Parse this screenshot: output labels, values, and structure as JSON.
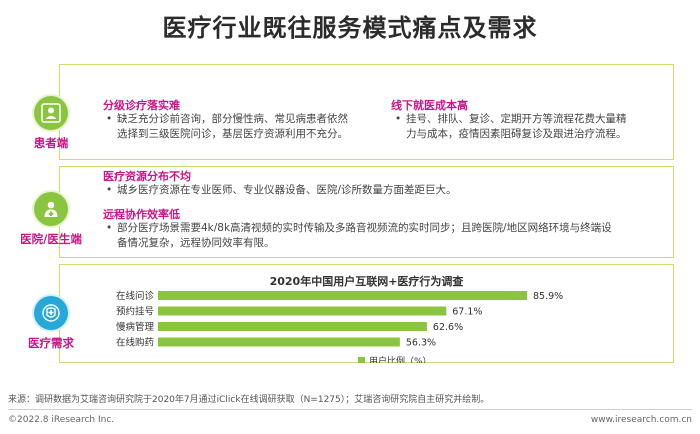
{
  "page": {
    "title": "医疗行业既往服务模式痛点及需求"
  },
  "patient": {
    "label": "患者端",
    "left": {
      "heading": "分级诊疗落实难",
      "line1": "缺乏充分诊前咨询，部分慢性病、常见病患者依然",
      "line2": "选择到三级医院问诊，基层医疗资源利用不充分。"
    },
    "right": {
      "heading": "线下就医成本高",
      "line1": "挂号、排队、复诊、定期开方等流程花费大量精",
      "line2": "力与成本，疫情因素阻碍复诊及跟进治疗流程。"
    }
  },
  "hospital": {
    "label": "医院/医生端",
    "block1": {
      "heading": "医疗资源分布不均",
      "line1": "城乡医疗资源在专业医师、专业仪器设备、医院/诊所数量方面差距巨大。"
    },
    "block2": {
      "heading": "远程协作效率低",
      "line1": "部分医疗场景需要4k/8k高清视频的实时传输及多路音视频流的实时同步；且跨医院/地区网络环境与终端设",
      "line2": "备情况复杂，远程协同效率有限。"
    }
  },
  "demand": {
    "label": "医疗需求"
  },
  "chart_data": {
    "type": "bar",
    "orientation": "horizontal",
    "title": "2020年中国用户互联网+医疗行为调查",
    "categories": [
      "在线问诊",
      "预约挂号",
      "慢病管理",
      "在线购药"
    ],
    "series": [
      {
        "name": "用户比例（%）",
        "values": [
          85.9,
          67.1,
          62.6,
          56.3
        ],
        "value_labels": [
          "85.9%",
          "67.1%",
          "62.6%",
          "56.3%"
        ]
      }
    ],
    "xlim": [
      0,
      100
    ],
    "grid": false,
    "legend": "bottom",
    "bar_color": "#8bc53f"
  },
  "footer": {
    "source": "来源：调研数据为艾瑞咨询研究院于2020年7月通过iClick在线调研获取（N=1275）；艾瑞咨询研究院自主研究并绘制。",
    "copyright": "©2022.8 iResearch Inc.",
    "url": "www.iresearch.com.cn"
  }
}
